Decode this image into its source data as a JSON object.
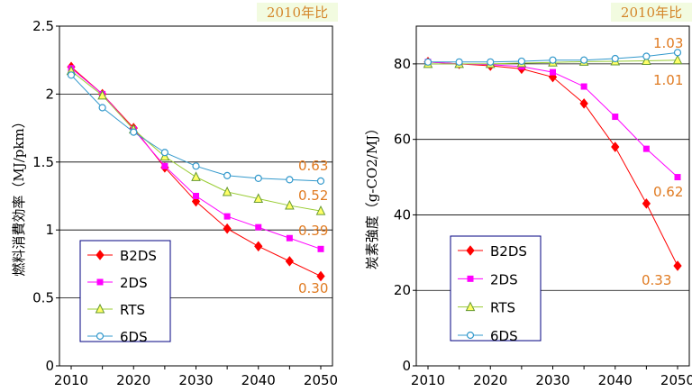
{
  "colors": {
    "B2DS": "#ff0000",
    "2DS": "#ff00ff",
    "RTS": "#99cc33",
    "6DS": "#3399cc",
    "annotation": "#e07b22",
    "badge_bg": "#f2fbe0"
  },
  "chart_data": [
    {
      "type": "line",
      "badge": "2010年比",
      "ylabel": "燃料消費効率（MJ/pkm）",
      "xlabel": "",
      "ylim": [
        0,
        2.5
      ],
      "x": [
        2010,
        2015,
        2020,
        2025,
        2030,
        2035,
        2040,
        2045,
        2050
      ],
      "xticks": [
        "2010",
        "2020",
        "2030",
        "2040",
        "2050"
      ],
      "yticks": [
        "0",
        "0.5",
        "1",
        "1.5",
        "2",
        "2.5"
      ],
      "grid": "horizontal",
      "legend": "bottom-left",
      "series": [
        {
          "name": "B2DS",
          "marker": "diamond",
          "values": [
            2.2,
            2.0,
            1.75,
            1.46,
            1.21,
            1.01,
            0.88,
            0.77,
            0.66
          ]
        },
        {
          "name": "2DS",
          "marker": "square",
          "values": [
            2.19,
            2.0,
            1.74,
            1.47,
            1.25,
            1.1,
            1.02,
            0.94,
            0.86
          ]
        },
        {
          "name": "RTS",
          "marker": "triangle",
          "values": [
            2.17,
            1.99,
            1.74,
            1.54,
            1.39,
            1.28,
            1.23,
            1.18,
            1.14
          ]
        },
        {
          "name": "6DS",
          "marker": "circle",
          "values": [
            2.14,
            1.9,
            1.72,
            1.57,
            1.47,
            1.4,
            1.38,
            1.37,
            1.36
          ]
        }
      ],
      "annotations": [
        "0.63",
        "0.52",
        "0.39",
        "0.30"
      ]
    },
    {
      "type": "line",
      "badge": "2010年比",
      "ylabel": "炭素強度（g-CO2/MJ）",
      "xlabel": "",
      "ylim": [
        0,
        90
      ],
      "x": [
        2010,
        2015,
        2020,
        2025,
        2030,
        2035,
        2040,
        2045,
        2050
      ],
      "xticks": [
        "2010",
        "2020",
        "2030",
        "2040",
        "2050"
      ],
      "yticks": [
        "0",
        "20",
        "40",
        "60",
        "80"
      ],
      "grid": "horizontal",
      "legend": "bottom-left",
      "series": [
        {
          "name": "B2DS",
          "marker": "diamond",
          "values": [
            80.5,
            80.0,
            79.5,
            78.7,
            76.5,
            69.5,
            58.0,
            43.0,
            26.5
          ]
        },
        {
          "name": "2DS",
          "marker": "square",
          "values": [
            80.5,
            80.0,
            79.8,
            79.3,
            77.8,
            74.0,
            66.0,
            57.5,
            50.0
          ]
        },
        {
          "name": "RTS",
          "marker": "triangle",
          "values": [
            80.0,
            80.0,
            80.0,
            80.2,
            80.4,
            80.6,
            80.7,
            80.8,
            81.0
          ]
        },
        {
          "name": "6DS",
          "marker": "circle",
          "values": [
            80.5,
            80.5,
            80.5,
            80.7,
            81.0,
            81.0,
            81.4,
            82.0,
            83.0
          ]
        }
      ],
      "annotations": [
        "1.03",
        "1.01",
        "0.62",
        "0.33"
      ]
    }
  ]
}
